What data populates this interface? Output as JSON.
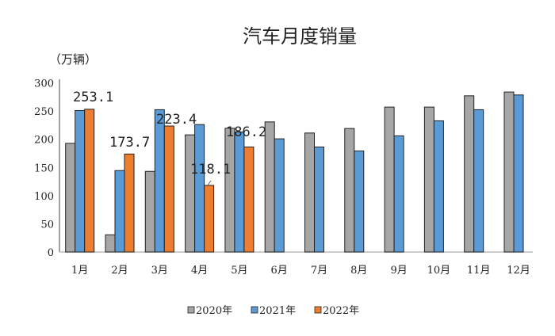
{
  "chart_data": {
    "type": "bar",
    "title": "汽车月度销量",
    "ylabel": "（万辆）",
    "xlabel": "",
    "ylim": [
      0,
      300
    ],
    "yticks": [
      "0",
      "50",
      "100",
      "150",
      "200",
      "250",
      "300"
    ],
    "categories": [
      "1月",
      "2月",
      "3月",
      "4月",
      "5月",
      "6月",
      "7月",
      "8月",
      "9月",
      "10月",
      "11月",
      "12月"
    ],
    "series": [
      {
        "name": "2020年",
        "color": "#a6a6a6",
        "values": [
          192.7,
          30.5,
          143.0,
          207.7,
          219.4,
          230.7,
          211.0,
          219.0,
          257.0,
          257.0,
          277.0,
          283.7
        ]
      },
      {
        "name": "2021年",
        "color": "#5b9bd5",
        "values": [
          250.9,
          144.4,
          252.3,
          226.0,
          212.8,
          200.7,
          186.2,
          179.2,
          206.0,
          232.6,
          252.3,
          278.5
        ]
      },
      {
        "name": "2022年",
        "color": "#ed7d31",
        "values": [
          253.1,
          173.7,
          223.4,
          118.1,
          186.2,
          null,
          null,
          null,
          null,
          null,
          null,
          null
        ]
      }
    ],
    "data_labels": [
      "253.1",
      "173.7",
      "223.4",
      "118.1",
      "186.2"
    ],
    "grid": false,
    "legend": "bottom"
  }
}
